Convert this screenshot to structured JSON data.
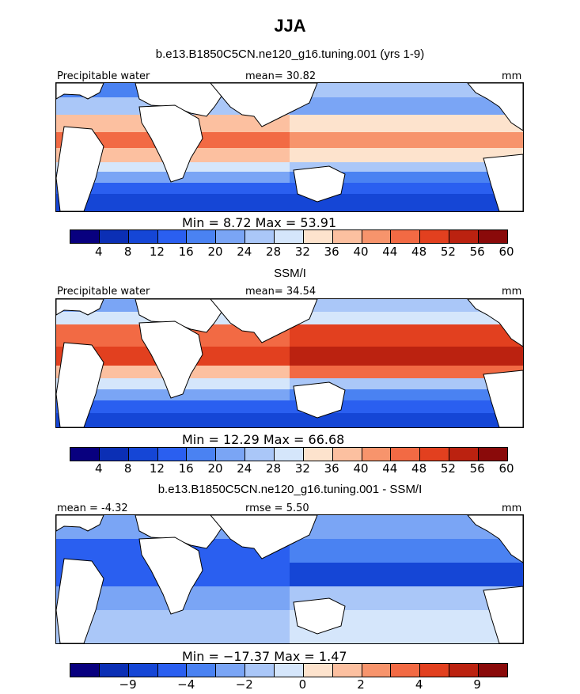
{
  "title": "JJA",
  "panels": [
    {
      "title": "b.e13.B1850C5CN.ne120_g16.tuning.001 (yrs 1-9)",
      "left_label": "Precipitable water",
      "center_label": "mean=  30.82",
      "right_label": "mm",
      "min_max": "Min =    8.72  Max =   53.91",
      "colorbar_ticks": [
        "4",
        "8",
        "12",
        "16",
        "20",
        "24",
        "28",
        "32",
        "36",
        "40",
        "44",
        "48",
        "52",
        "56",
        "60"
      ],
      "palette": [
        "#08007f",
        "#0b2fb5",
        "#1546d6",
        "#2a5ff0",
        "#4a82f2",
        "#7aa5f5",
        "#aac7f8",
        "#d5e6fb",
        "#fde3cd",
        "#fcc0a0",
        "#f7946c",
        "#f26a44",
        "#e2401f",
        "#bb2210",
        "#8a0a0a"
      ],
      "field": "model"
    },
    {
      "title": "SSM/I",
      "left_label": "Precipitable water",
      "center_label": "mean=  34.54",
      "right_label": "mm",
      "min_max": "Min =   12.29  Max =   66.68",
      "colorbar_ticks": [
        "4",
        "8",
        "12",
        "16",
        "20",
        "24",
        "28",
        "32",
        "36",
        "40",
        "44",
        "48",
        "52",
        "56",
        "60"
      ],
      "palette": [
        "#08007f",
        "#0b2fb5",
        "#1546d6",
        "#2a5ff0",
        "#4a82f2",
        "#7aa5f5",
        "#aac7f8",
        "#d5e6fb",
        "#fde3cd",
        "#fcc0a0",
        "#f7946c",
        "#f26a44",
        "#e2401f",
        "#bb2210",
        "#8a0a0a"
      ],
      "field": "obs"
    },
    {
      "title": "b.e13.B1850C5CN.ne120_g16.tuning.001 - SSM/I",
      "left_label": "mean =   -4.32",
      "center_label": "rmse =     5.50",
      "right_label": "mm",
      "min_max": "Min = −17.37  Max =    1.47",
      "colorbar_ticks": [
        "−9",
        "−4",
        "−2",
        "0",
        "2",
        "4",
        "9"
      ],
      "palette": [
        "#08007f",
        "#0b2fb5",
        "#1546d6",
        "#2a5ff0",
        "#4a82f2",
        "#7aa5f5",
        "#aac7f8",
        "#d5e6fb",
        "#fde3cd",
        "#fcc0a0",
        "#f7946c",
        "#f26a44",
        "#e2401f",
        "#bb2210",
        "#8a0a0a"
      ],
      "field": "diff"
    }
  ]
}
